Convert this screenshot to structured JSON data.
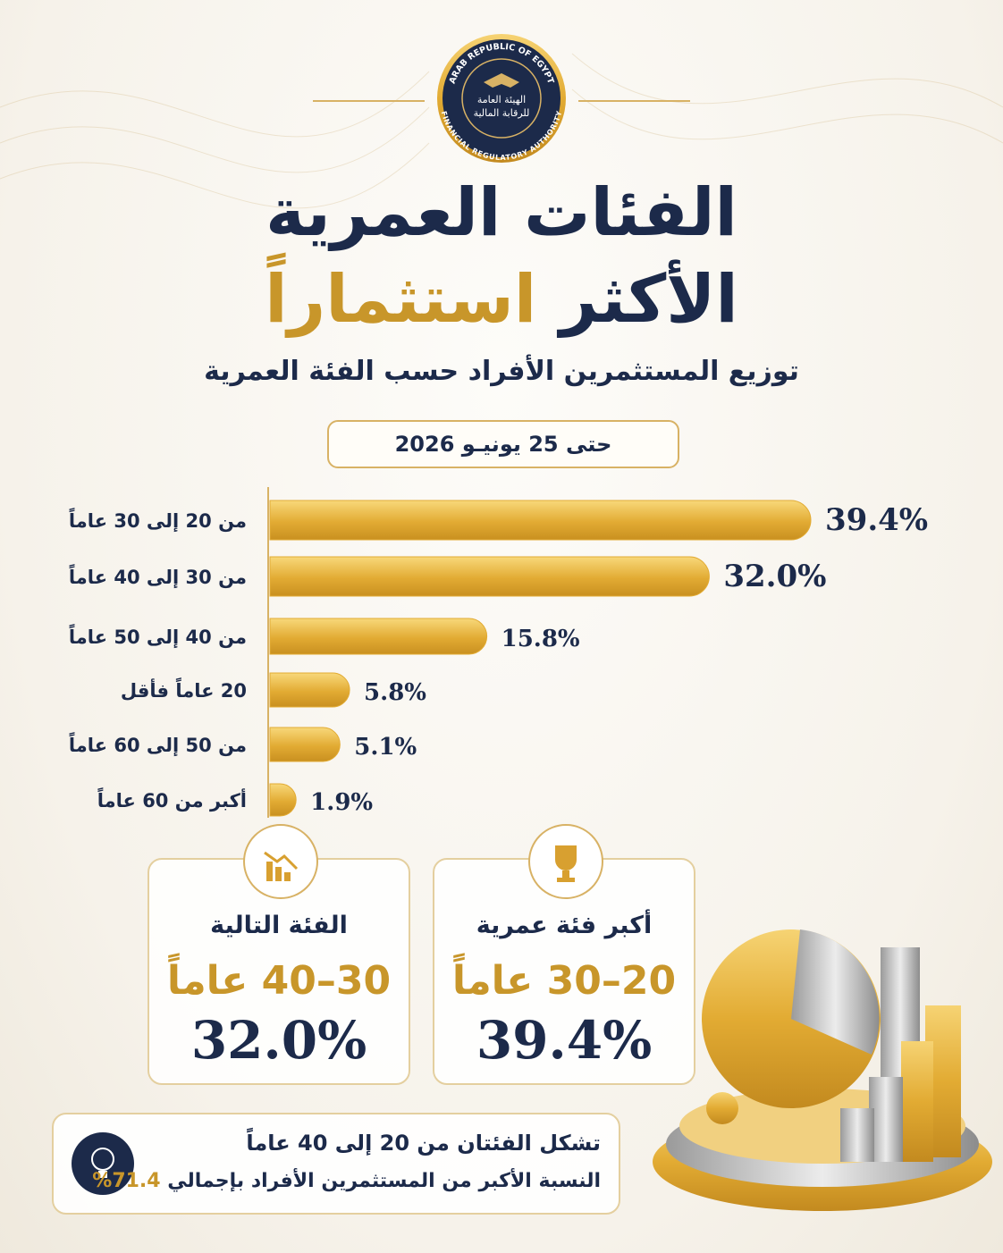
{
  "logo": {
    "top": "ARAB REPUBLIC OF EGYPT",
    "arabic_line1": "الهيئة العامة",
    "arabic_line2": "للرقابة المالية",
    "bottom": "FINANCIAL REGULATORY AUTHORITY"
  },
  "header": {
    "title_line1": "الفئات العمرية",
    "title_line2": "الأكثر",
    "title_highlight": "استثماراً",
    "subtitle": "توزيع المستثمرين الأفراد حسب الفئة العمرية",
    "date": "حتى 25 يونيـو 2026"
  },
  "chart_data": {
    "type": "bar",
    "orientation": "horizontal",
    "categories": [
      "من 20 إلى 30 عاماً",
      "من 30 إلى 40 عاماً",
      "من 40 إلى 50 عاماً",
      "20 عاماً فأقل",
      "من 50 إلى 60 عاماً",
      "أكبر من 60 عاماً"
    ],
    "values": [
      39.4,
      32.0,
      15.8,
      5.8,
      5.1,
      1.9
    ],
    "value_labels": [
      "39.4%",
      "32.0%",
      "15.8%",
      "5.8%",
      "5.1%",
      "1.9%"
    ],
    "color": "#e2ab33"
  },
  "cards": [
    {
      "title": "أكبر فئة عمرية",
      "range": "20–30 عاماً",
      "value": "39.4%"
    },
    {
      "title": "الفئة التالية",
      "range": "30–40 عاماً",
      "value": "32.0%"
    }
  ],
  "note": {
    "line1": "تشكل الفئتان من 20 إلى 40 عاماً",
    "line2": "النسبة الأكبر من المستثمرين الأفراد بإجمالي",
    "highlight": "71.4%",
    "end": "."
  }
}
